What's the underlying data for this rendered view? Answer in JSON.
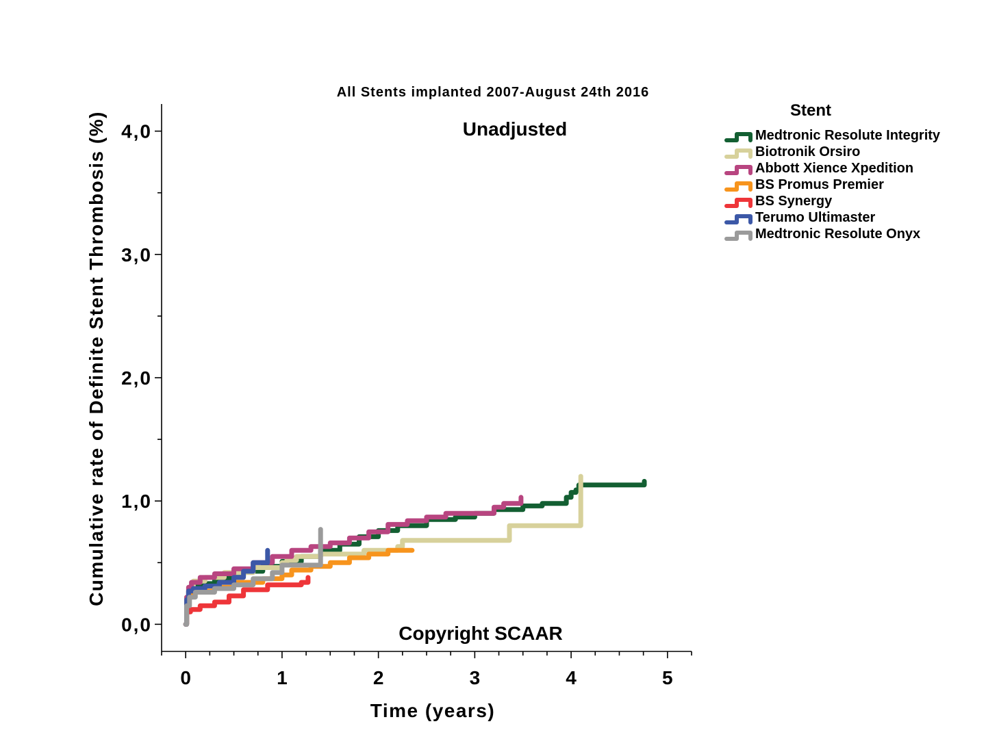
{
  "chart_data": {
    "type": "line",
    "title": "All Stents implanted 2007-August 24th 2016",
    "annotations": {
      "subtitle": "Unadjusted",
      "copyright": "Copyright SCAAR"
    },
    "xlabel": "Time (years)",
    "ylabel": "Cumulative rate of Definite Stent Thrombosis (%)",
    "xlim": [
      -0.25,
      5.25
    ],
    "ylim": [
      -0.22,
      4.22
    ],
    "x_ticks": [
      0,
      1,
      2,
      3,
      4,
      5
    ],
    "x_tick_labels": [
      "0",
      "1",
      "2",
      "3",
      "4",
      "5"
    ],
    "y_ticks": [
      0,
      1,
      2,
      3,
      4
    ],
    "y_tick_labels": [
      "0,0",
      "1,0",
      "2,0",
      "3,0",
      "4,0"
    ],
    "grid": false,
    "legend_title": "Stent",
    "legend_position": "right",
    "series": [
      {
        "name": "Medtronic Resolute Integrity",
        "color": "#135f32",
        "x": [
          0,
          0.01,
          0.03,
          0.06,
          0.12,
          0.2,
          0.3,
          0.45,
          0.6,
          0.8,
          1.0,
          1.2,
          1.4,
          1.6,
          1.8,
          2.0,
          2.2,
          2.5,
          2.8,
          3.0,
          3.2,
          3.5,
          3.7,
          3.95,
          4.0,
          4.05,
          4.08,
          4.15,
          4.4,
          4.6,
          4.76,
          4.76
        ],
        "y": [
          0,
          0.2,
          0.27,
          0.29,
          0.31,
          0.33,
          0.36,
          0.39,
          0.43,
          0.47,
          0.51,
          0.55,
          0.6,
          0.65,
          0.71,
          0.76,
          0.8,
          0.85,
          0.87,
          0.9,
          0.93,
          0.96,
          0.98,
          1.03,
          1.07,
          1.09,
          1.13,
          1.13,
          1.13,
          1.13,
          1.13,
          1.16
        ]
      },
      {
        "name": "Biotronik Orsiro",
        "color": "#d7d19b",
        "x": [
          0,
          0.01,
          0.03,
          0.08,
          0.2,
          0.4,
          0.7,
          1.0,
          1.05,
          1.15,
          1.4,
          1.6,
          1.85,
          2.2,
          2.25,
          3.35,
          3.36,
          4.1,
          4.1
        ],
        "y": [
          0,
          0.22,
          0.3,
          0.35,
          0.38,
          0.42,
          0.46,
          0.5,
          0.52,
          0.55,
          0.57,
          0.57,
          0.6,
          0.63,
          0.68,
          0.68,
          0.8,
          0.8,
          1.2
        ]
      },
      {
        "name": "Abbott Xience Xpedition",
        "color": "#b84580",
        "x": [
          0,
          0.01,
          0.03,
          0.06,
          0.15,
          0.3,
          0.5,
          0.7,
          0.9,
          1.1,
          1.3,
          1.5,
          1.7,
          1.9,
          2.1,
          2.3,
          2.5,
          2.7,
          2.9,
          3.1,
          3.2,
          3.3,
          3.48,
          3.48
        ],
        "y": [
          0,
          0.22,
          0.3,
          0.34,
          0.38,
          0.41,
          0.45,
          0.5,
          0.55,
          0.6,
          0.63,
          0.66,
          0.7,
          0.75,
          0.81,
          0.84,
          0.87,
          0.9,
          0.9,
          0.9,
          0.95,
          0.98,
          0.98,
          1.03
        ]
      },
      {
        "name": "BS Promus Premier",
        "color": "#f7941d",
        "x": [
          0,
          0.01,
          0.04,
          0.1,
          0.3,
          0.5,
          0.8,
          1.0,
          1.1,
          1.3,
          1.5,
          1.7,
          1.9,
          2.1,
          2.35
        ],
        "y": [
          0,
          0.2,
          0.25,
          0.27,
          0.3,
          0.34,
          0.37,
          0.4,
          0.44,
          0.47,
          0.5,
          0.54,
          0.57,
          0.6,
          0.6
        ]
      },
      {
        "name": "BS Synergy",
        "color": "#ee3539",
        "x": [
          0,
          0.01,
          0.05,
          0.15,
          0.3,
          0.45,
          0.6,
          0.85,
          1.1,
          1.2,
          1.27
        ],
        "y": [
          0,
          0.1,
          0.12,
          0.15,
          0.18,
          0.23,
          0.28,
          0.32,
          0.32,
          0.34,
          0.38
        ]
      },
      {
        "name": "Terumo Ultimaster",
        "color": "#3c58a7",
        "x": [
          0,
          0.01,
          0.03,
          0.08,
          0.2,
          0.35,
          0.5,
          0.6,
          0.7,
          0.85,
          0.85
        ],
        "y": [
          0,
          0.2,
          0.27,
          0.29,
          0.31,
          0.34,
          0.38,
          0.43,
          0.5,
          0.52,
          0.6
        ]
      },
      {
        "name": "Medtronic Resolute Onyx",
        "color": "#9b9b9b",
        "x": [
          0,
          0.01,
          0.04,
          0.1,
          0.3,
          0.5,
          0.7,
          0.9,
          1.0,
          1.4,
          1.4
        ],
        "y": [
          0,
          0.15,
          0.22,
          0.26,
          0.29,
          0.32,
          0.37,
          0.42,
          0.48,
          0.48,
          0.77
        ]
      }
    ]
  }
}
